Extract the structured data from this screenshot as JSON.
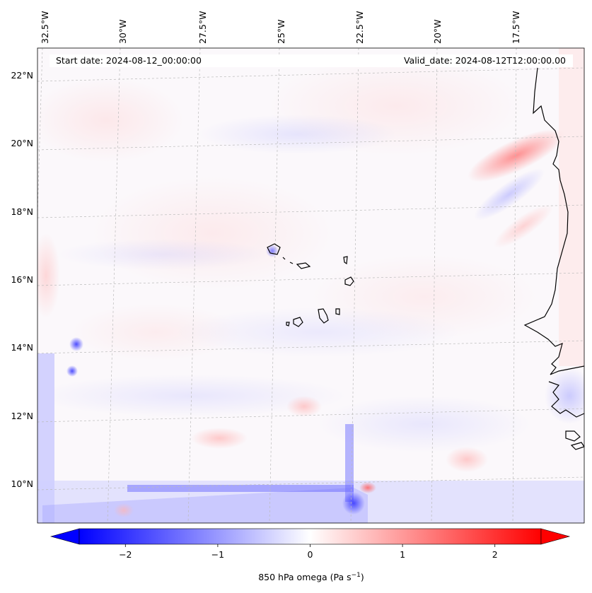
{
  "header": {
    "start_date": "Start date: 2024-08-12_00:00:00",
    "valid_date": "Valid_date: 2024-08-12T12:00:00.00"
  },
  "map": {
    "projection": "lambert-conformal",
    "gridlines": true,
    "lon_ticks": [
      "32.5°W",
      "30°W",
      "27.5°W",
      "25°W",
      "22.5°W",
      "20°W",
      "17.5°W"
    ],
    "lat_ticks": [
      "22°N",
      "20°N",
      "18°N",
      "16°N",
      "14°N",
      "12°N",
      "10°N"
    ],
    "field": "850 hPa omega",
    "features": [
      "coastline-west-africa",
      "cape-verde-islands"
    ]
  },
  "colorbar": {
    "cmap": "bwr",
    "vmin": -2.5,
    "vmax": 2.5,
    "extend": "both",
    "ticks": [
      "−2",
      "−1",
      "0",
      "1",
      "2"
    ],
    "tick_values": [
      -2,
      -1,
      0,
      1,
      2
    ],
    "label_main": "850 hPa omega (Pa s",
    "label_exp": "−1",
    "label_close": ")"
  },
  "colors": {
    "negative": "#0000ff",
    "zero": "#ffffff",
    "positive": "#ff0000",
    "outline": "#000000",
    "gridline": "#bbbbbb"
  }
}
